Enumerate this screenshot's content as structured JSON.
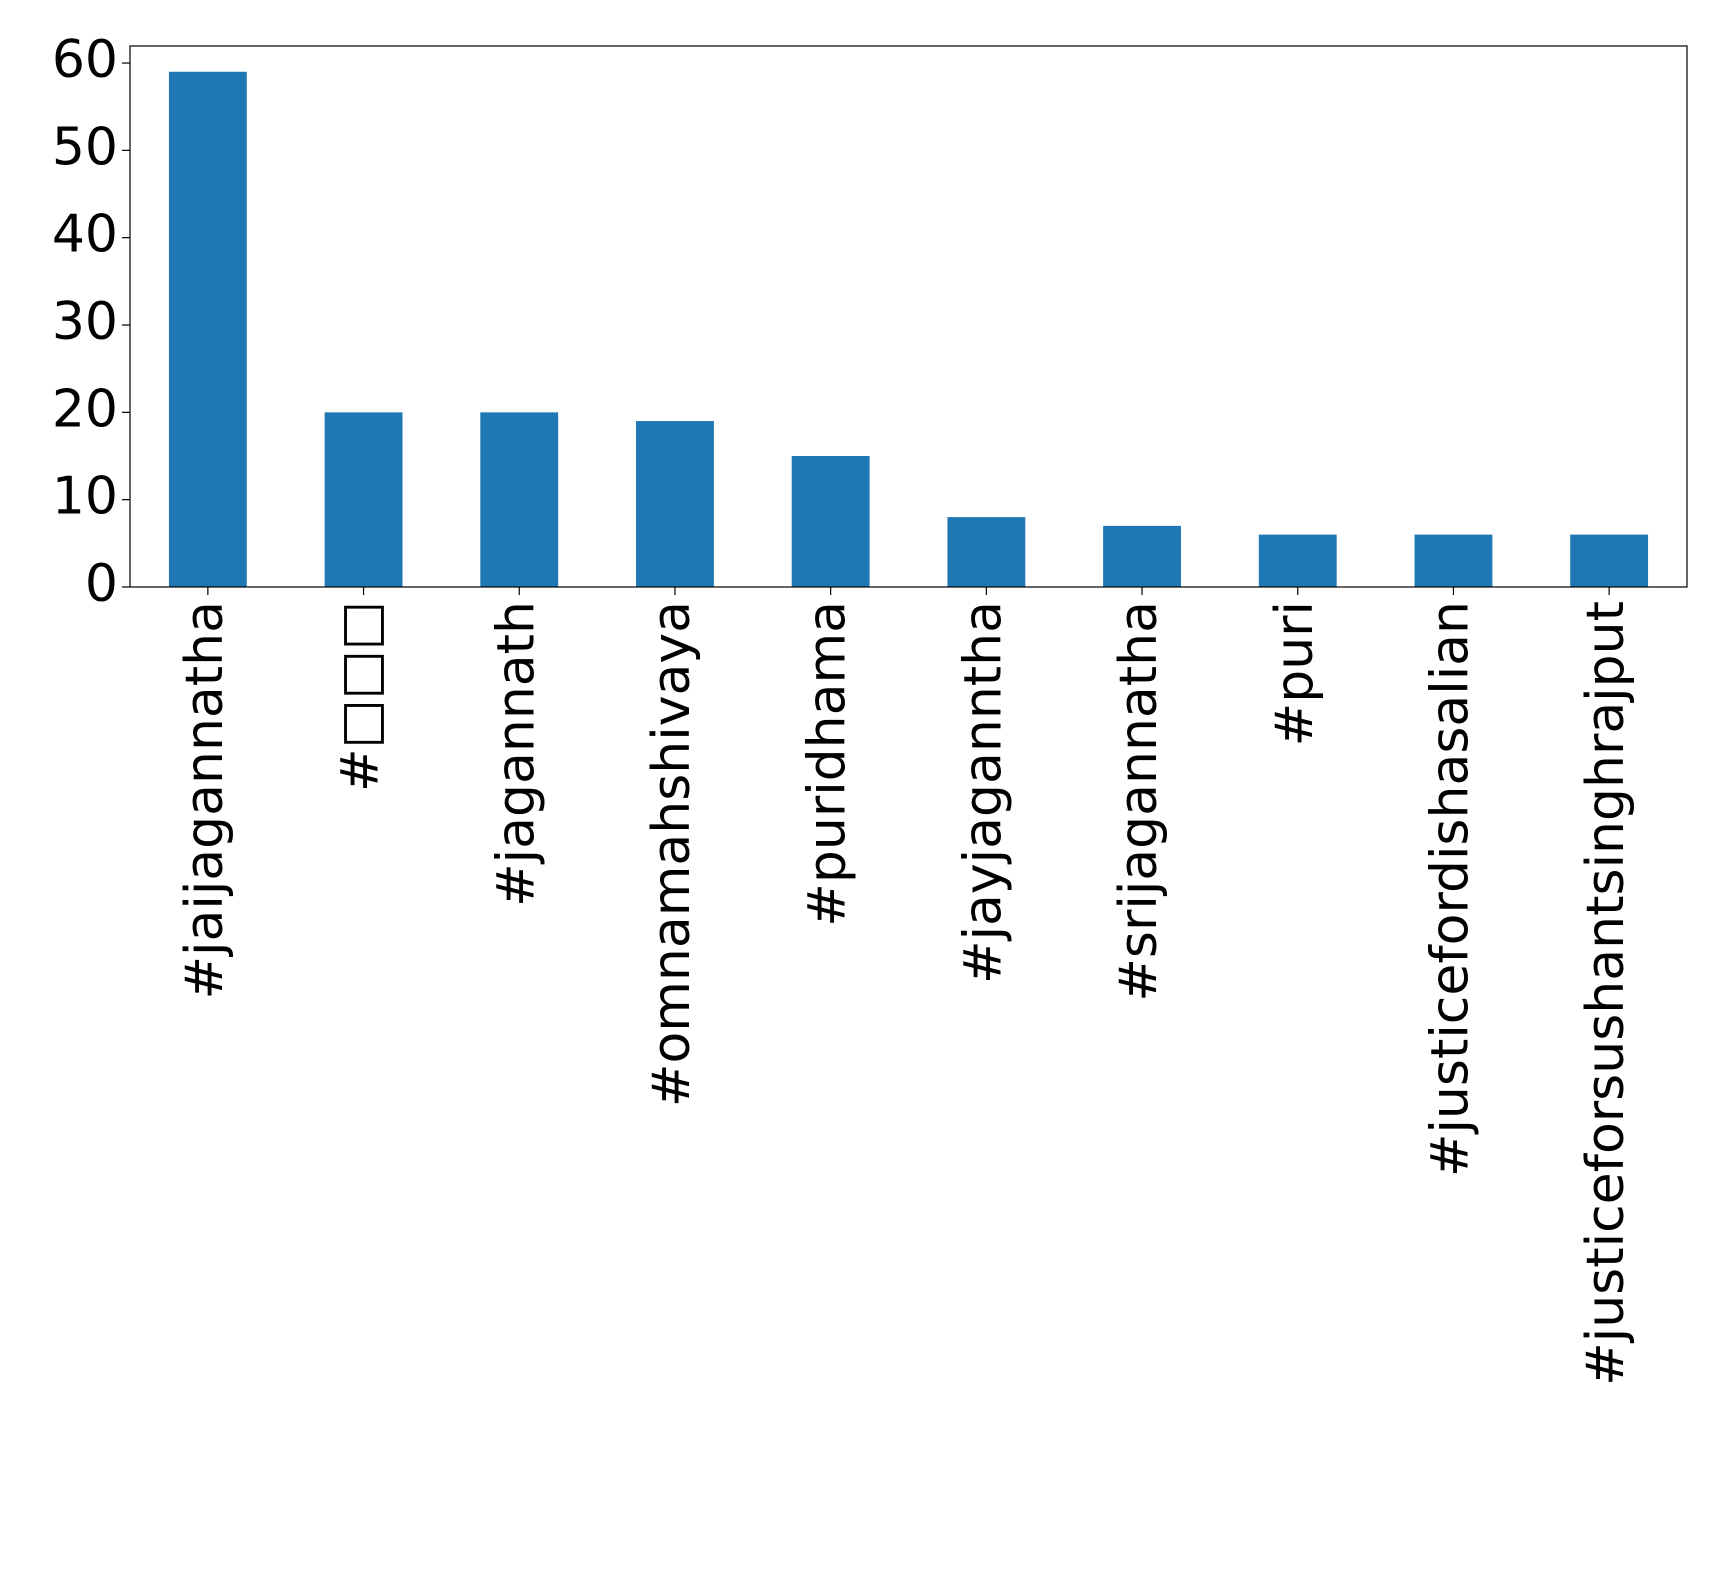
{
  "chart_data": {
    "type": "bar",
    "categories": [
      "#jaijagannatha",
      "#□□□",
      "#jagannath",
      "#omnamahshivaya",
      "#puridhama",
      "#jayjaganntha",
      "#srijagannatha",
      "#puri",
      "#justicefordishasalian",
      "#justiceforsushantsinghrajput"
    ],
    "values": [
      59,
      20,
      20,
      19,
      15,
      8,
      7,
      6,
      6,
      6
    ],
    "color": "#1f77b4",
    "ylim": [
      0,
      61.95
    ],
    "yticks": [
      0,
      10,
      20,
      30,
      40,
      50,
      60
    ],
    "grid": false
  }
}
